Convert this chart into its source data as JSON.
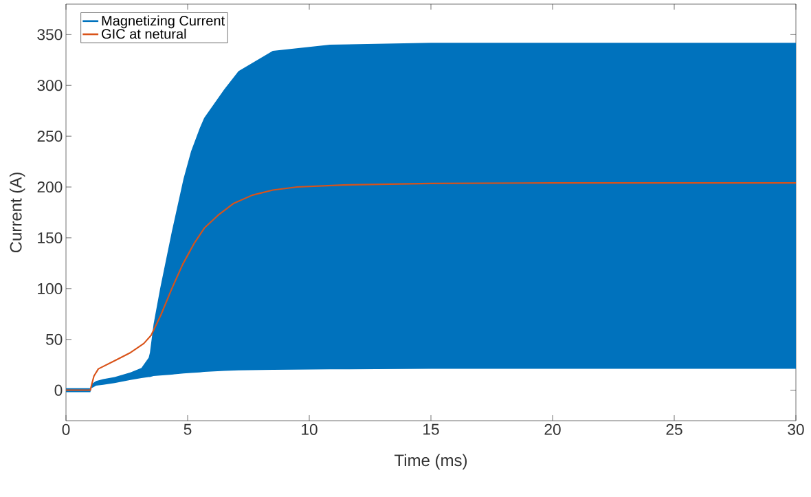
{
  "chart_data": {
    "type": "line",
    "xlabel": "Time (ms)",
    "ylabel": "Current (A)",
    "xlim": [
      0,
      30
    ],
    "ylim": [
      -30,
      380
    ],
    "xticks": [
      0,
      5,
      10,
      15,
      20,
      25,
      30
    ],
    "yticks": [
      0,
      50,
      100,
      150,
      200,
      250,
      300,
      350
    ],
    "grid": false,
    "legend": "top left",
    "line_style": "solid",
    "marker": "none",
    "series": [
      {
        "name": "Magnetizing Current",
        "color": "#0072bd",
        "x": [
          0,
          1,
          1.05,
          1.24,
          1.53,
          2.0,
          2.65,
          3.1,
          3.4,
          3.45,
          3.6,
          3.87,
          4.35,
          4.83,
          5.14,
          5.5,
          5.68,
          6.5,
          7.09,
          8.5,
          10.85,
          15,
          20,
          25,
          30
        ],
        "values": [
          null,
          null,
          null,
          null,
          null,
          null,
          null,
          null,
          null,
          null,
          null,
          null,
          null,
          null,
          null,
          null,
          null,
          null,
          null,
          null,
          null,
          null,
          null,
          null,
          null
        ],
        "upper": [
          2,
          2,
          6,
          9,
          11,
          13,
          17.5,
          22,
          32,
          37,
          65,
          100,
          156,
          208,
          235,
          258,
          268,
          296,
          314,
          334,
          340,
          342,
          342,
          342,
          342
        ],
        "lower": [
          -2,
          -2,
          2,
          4.5,
          5.4,
          7,
          10,
          12,
          13,
          13,
          14,
          14.5,
          15.4,
          16.5,
          17,
          17.5,
          18,
          19,
          19.5,
          20,
          20.5,
          21,
          21,
          21,
          21
        ]
      },
      {
        "name": "GIC at netural",
        "color": "#d95319",
        "x": [
          0,
          1,
          1.05,
          1.15,
          1.33,
          2.0,
          2.65,
          3.2,
          3.5,
          3.9,
          4.35,
          4.8,
          5.28,
          5.7,
          6.24,
          6.9,
          7.66,
          8.5,
          9.5,
          11.4,
          15,
          20,
          25,
          30
        ],
        "values": [
          0,
          0,
          5,
          14,
          21,
          29,
          37,
          46,
          54,
          74,
          100,
          124,
          145,
          160,
          172,
          184,
          192,
          197,
          200,
          202,
          203.5,
          204,
          204,
          204
        ]
      }
    ]
  }
}
